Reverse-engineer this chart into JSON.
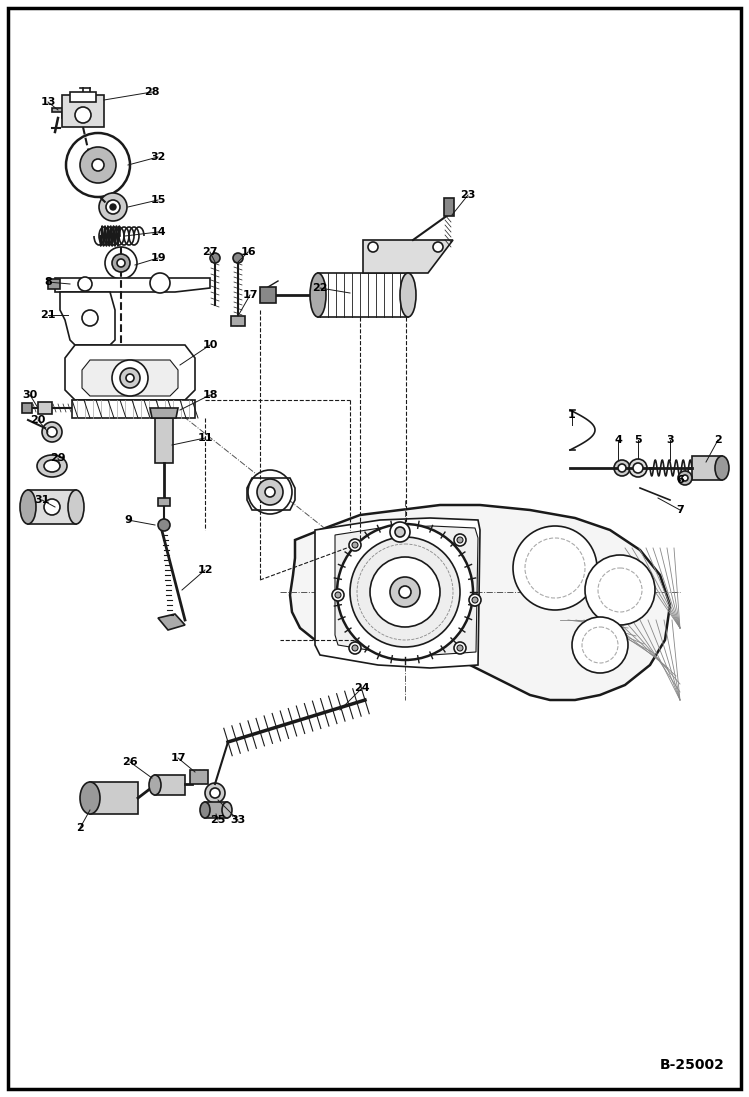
{
  "bg_color": "#ffffff",
  "border_color": "#000000",
  "border_width": 2.5,
  "page_label": "B-25002",
  "figsize": [
    7.49,
    10.97
  ],
  "dpi": 100,
  "line_color": "#1a1a1a",
  "gray_fill": "#888888",
  "light_gray": "#cccccc",
  "mid_gray": "#666666"
}
